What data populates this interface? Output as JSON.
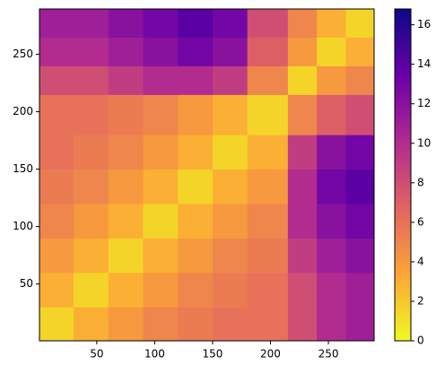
{
  "chart_data": {
    "type": "heatmap",
    "x_bins": [
      0.5,
      30,
      60,
      90,
      120,
      150,
      180,
      215,
      240,
      265,
      289.5
    ],
    "y_bins": [
      0.5,
      30,
      60,
      90,
      120,
      150,
      180,
      215,
      240,
      265,
      289.5
    ],
    "z": [
      [
        1.5,
        3,
        4,
        5,
        5.5,
        6,
        6,
        8,
        10,
        11
      ],
      [
        3,
        1.5,
        3,
        4,
        5,
        5.5,
        6,
        8,
        10,
        11
      ],
      [
        4,
        3,
        1.5,
        3,
        4,
        5,
        5.5,
        9,
        11,
        12
      ],
      [
        5,
        4,
        3,
        1.5,
        3,
        4,
        5,
        10,
        12,
        13
      ],
      [
        5.5,
        5,
        4,
        3,
        1.5,
        3,
        4,
        10,
        13,
        14
      ],
      [
        6,
        5.5,
        5,
        4,
        3,
        1.5,
        3,
        9,
        12,
        13
      ],
      [
        6,
        6,
        5.5,
        5,
        4,
        3,
        1.5,
        5,
        7,
        8
      ],
      [
        8,
        8,
        9,
        10,
        10,
        9,
        5,
        1.5,
        4,
        5
      ],
      [
        10,
        10,
        11,
        12,
        13,
        12,
        7,
        4,
        1.5,
        3
      ],
      [
        11,
        11,
        12,
        13,
        14,
        13,
        8,
        5,
        3,
        1.5
      ]
    ],
    "xlim": [
      0.5,
      289.5
    ],
    "ylim": [
      0.5,
      289.5
    ],
    "xticks": [
      50,
      100,
      150,
      200,
      250
    ],
    "yticks": [
      50,
      100,
      150,
      200,
      250
    ],
    "clim": [
      0,
      16.8
    ],
    "cticks": [
      0,
      2,
      4,
      6,
      8,
      10,
      12,
      14,
      16
    ],
    "colorscale": [
      "#f0f921",
      "#fca636",
      "#e16462",
      "#b12a90",
      "#6a00a8",
      "#0d0887"
    ]
  }
}
